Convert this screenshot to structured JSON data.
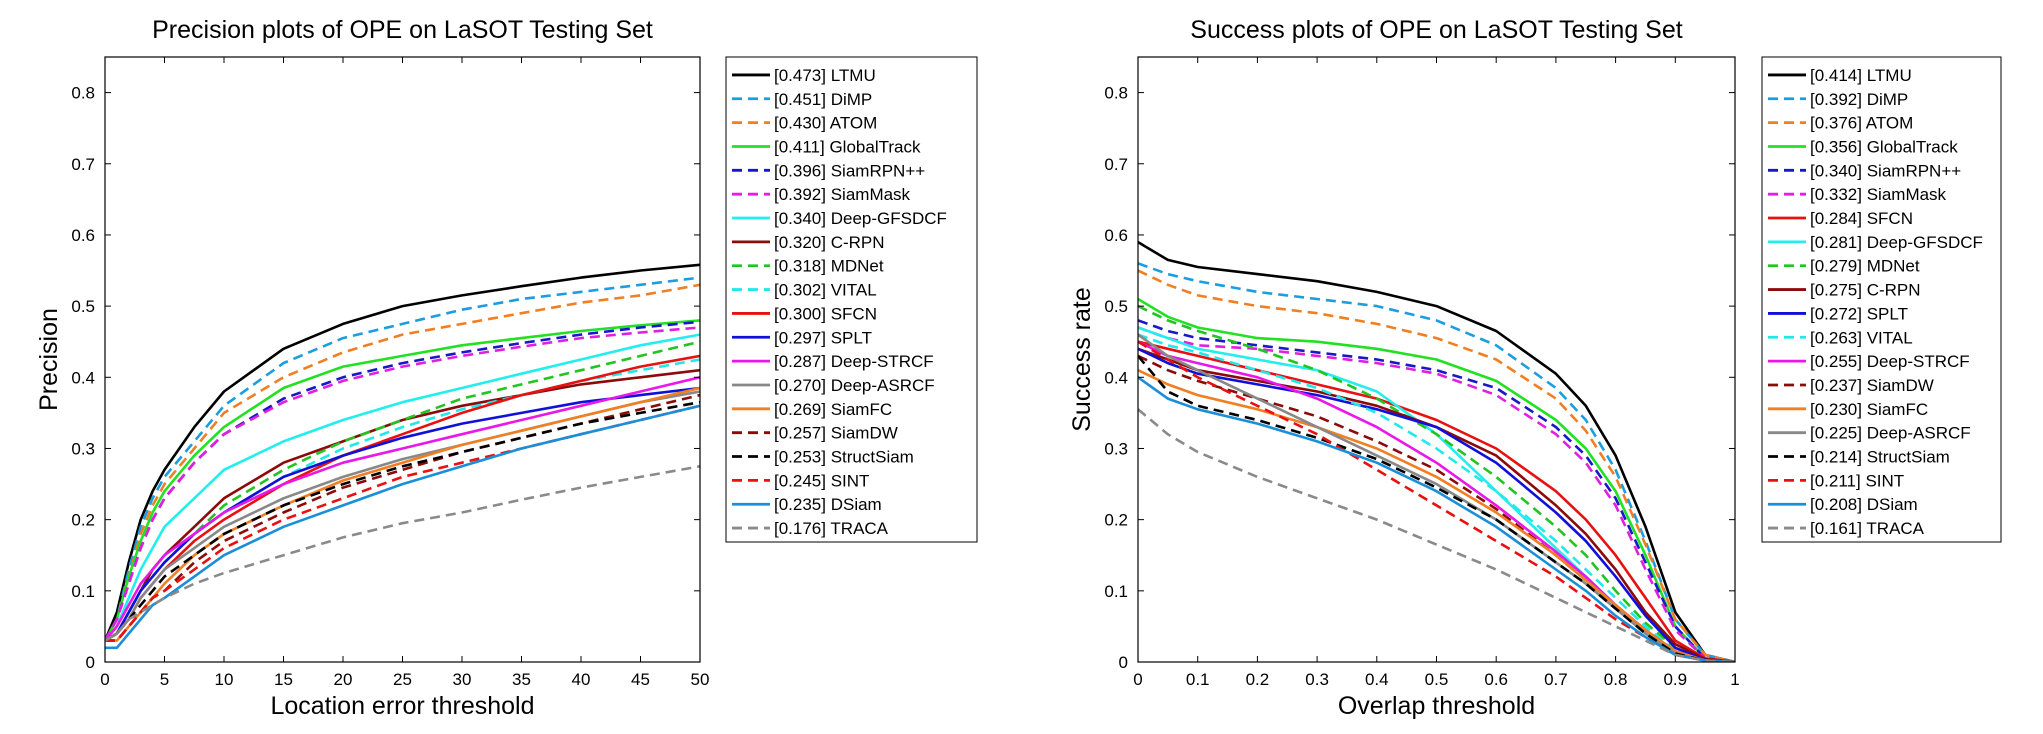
{
  "chart_data": [
    {
      "type": "line",
      "title": "Precision plots of OPE on LaSOT Testing Set",
      "xlabel": "Location error threshold",
      "ylabel": "Precision",
      "xlim": [
        0,
        50
      ],
      "ylim": [
        0,
        0.85
      ],
      "xticks": [
        0,
        5,
        10,
        15,
        20,
        25,
        30,
        35,
        40,
        45,
        50
      ],
      "yticks": [
        0,
        0.1,
        0.2,
        0.3,
        0.4,
        0.5,
        0.6,
        0.7,
        0.8
      ],
      "legend_position": "outside-right",
      "x": [
        0,
        1,
        2,
        3,
        4,
        5,
        7.5,
        10,
        15,
        20,
        25,
        30,
        35,
        40,
        45,
        50
      ],
      "series": [
        {
          "name": "[0.473] LTMU",
          "color": "#000000",
          "dash": "solid",
          "values": [
            0.03,
            0.07,
            0.14,
            0.2,
            0.24,
            0.27,
            0.33,
            0.38,
            0.44,
            0.475,
            0.5,
            0.515,
            0.528,
            0.54,
            0.55,
            0.558
          ]
        },
        {
          "name": "[0.451] DiMP",
          "color": "#1a9ee0",
          "dash": "dashed",
          "values": [
            0.03,
            0.06,
            0.13,
            0.19,
            0.23,
            0.26,
            0.31,
            0.36,
            0.42,
            0.455,
            0.475,
            0.495,
            0.51,
            0.52,
            0.53,
            0.54
          ]
        },
        {
          "name": "[0.430] ATOM",
          "color": "#f07f24",
          "dash": "dashed",
          "values": [
            0.03,
            0.06,
            0.12,
            0.18,
            0.22,
            0.25,
            0.3,
            0.35,
            0.4,
            0.435,
            0.46,
            0.475,
            0.49,
            0.505,
            0.515,
            0.53
          ]
        },
        {
          "name": "[0.411] GlobalTrack",
          "color": "#22e022",
          "dash": "solid",
          "values": [
            0.03,
            0.06,
            0.12,
            0.17,
            0.21,
            0.24,
            0.29,
            0.33,
            0.385,
            0.415,
            0.43,
            0.445,
            0.455,
            0.465,
            0.473,
            0.48
          ]
        },
        {
          "name": "[0.396] SiamRPN++",
          "color": "#1818c8",
          "dash": "dashed",
          "values": [
            0.03,
            0.06,
            0.11,
            0.16,
            0.2,
            0.23,
            0.28,
            0.32,
            0.37,
            0.4,
            0.42,
            0.435,
            0.448,
            0.46,
            0.47,
            0.478
          ]
        },
        {
          "name": "[0.392] SiamMask",
          "color": "#e020e0",
          "dash": "dashed",
          "values": [
            0.03,
            0.06,
            0.11,
            0.16,
            0.2,
            0.23,
            0.28,
            0.32,
            0.365,
            0.395,
            0.415,
            0.43,
            0.443,
            0.455,
            0.463,
            0.47
          ]
        },
        {
          "name": "[0.340] Deep-GFSDCF",
          "color": "#22eeee",
          "dash": "solid",
          "values": [
            0.03,
            0.05,
            0.09,
            0.13,
            0.16,
            0.19,
            0.23,
            0.27,
            0.31,
            0.34,
            0.365,
            0.385,
            0.405,
            0.425,
            0.445,
            0.46
          ]
        },
        {
          "name": "[0.320] C-RPN",
          "color": "#8b0a0a",
          "dash": "solid",
          "values": [
            0.03,
            0.04,
            0.07,
            0.1,
            0.13,
            0.15,
            0.19,
            0.23,
            0.28,
            0.31,
            0.34,
            0.36,
            0.375,
            0.39,
            0.4,
            0.41
          ]
        },
        {
          "name": "[0.318] MDNet",
          "color": "#22c422",
          "dash": "dashed",
          "values": [
            0.03,
            0.04,
            0.07,
            0.1,
            0.12,
            0.14,
            0.18,
            0.22,
            0.27,
            0.31,
            0.34,
            0.37,
            0.39,
            0.41,
            0.43,
            0.45
          ]
        },
        {
          "name": "[0.302] VITAL",
          "color": "#22e8e8",
          "dash": "dashed",
          "values": [
            0.03,
            0.04,
            0.07,
            0.1,
            0.12,
            0.14,
            0.18,
            0.21,
            0.26,
            0.3,
            0.33,
            0.355,
            0.375,
            0.395,
            0.41,
            0.425
          ]
        },
        {
          "name": "[0.300] SFCN",
          "color": "#e81010",
          "dash": "solid",
          "values": [
            0.03,
            0.04,
            0.06,
            0.09,
            0.11,
            0.13,
            0.17,
            0.2,
            0.25,
            0.29,
            0.32,
            0.35,
            0.375,
            0.395,
            0.415,
            0.43
          ]
        },
        {
          "name": "[0.297] SPLT",
          "color": "#1010d8",
          "dash": "solid",
          "values": [
            0.03,
            0.04,
            0.07,
            0.1,
            0.12,
            0.14,
            0.18,
            0.21,
            0.26,
            0.29,
            0.315,
            0.335,
            0.35,
            0.365,
            0.375,
            0.385
          ]
        },
        {
          "name": "[0.287] Deep-STRCF",
          "color": "#e818e8",
          "dash": "solid",
          "values": [
            0.03,
            0.05,
            0.08,
            0.11,
            0.13,
            0.15,
            0.18,
            0.21,
            0.25,
            0.28,
            0.3,
            0.32,
            0.34,
            0.36,
            0.38,
            0.4
          ]
        },
        {
          "name": "[0.270] Deep-ASRCF",
          "color": "#888888",
          "dash": "solid",
          "values": [
            0.03,
            0.04,
            0.06,
            0.09,
            0.11,
            0.13,
            0.16,
            0.19,
            0.23,
            0.26,
            0.285,
            0.305,
            0.325,
            0.345,
            0.365,
            0.38
          ]
        },
        {
          "name": "[0.269] SiamFC",
          "color": "#f07f24",
          "dash": "solid",
          "values": [
            0.03,
            0.03,
            0.05,
            0.07,
            0.09,
            0.11,
            0.15,
            0.18,
            0.22,
            0.255,
            0.28,
            0.305,
            0.325,
            0.345,
            0.365,
            0.385
          ]
        },
        {
          "name": "[0.257] SiamDW",
          "color": "#8b0a0a",
          "dash": "dashed",
          "values": [
            0.03,
            0.03,
            0.05,
            0.07,
            0.09,
            0.1,
            0.14,
            0.17,
            0.21,
            0.245,
            0.27,
            0.295,
            0.315,
            0.335,
            0.355,
            0.375
          ]
        },
        {
          "name": "[0.253] StructSiam",
          "color": "#000000",
          "dash": "dashed",
          "values": [
            0.03,
            0.04,
            0.06,
            0.08,
            0.1,
            0.12,
            0.15,
            0.18,
            0.22,
            0.25,
            0.275,
            0.295,
            0.315,
            0.335,
            0.35,
            0.365
          ]
        },
        {
          "name": "[0.245] SINT",
          "color": "#e81010",
          "dash": "dashed",
          "values": [
            0.03,
            0.03,
            0.05,
            0.07,
            0.09,
            0.1,
            0.13,
            0.16,
            0.2,
            0.23,
            0.26,
            0.28,
            0.3,
            0.32,
            0.34,
            0.36
          ]
        },
        {
          "name": "[0.235] DSiam",
          "color": "#1a8fd8",
          "dash": "solid",
          "values": [
            0.02,
            0.02,
            0.04,
            0.06,
            0.08,
            0.09,
            0.12,
            0.15,
            0.19,
            0.22,
            0.25,
            0.275,
            0.3,
            0.32,
            0.34,
            0.36
          ]
        },
        {
          "name": "[0.176] TRACA",
          "color": "#8a8a8a",
          "dash": "dashed",
          "values": [
            0.03,
            0.04,
            0.06,
            0.07,
            0.08,
            0.09,
            0.11,
            0.125,
            0.15,
            0.175,
            0.195,
            0.21,
            0.228,
            0.245,
            0.26,
            0.275
          ]
        }
      ]
    },
    {
      "type": "line",
      "title": "Success plots of OPE on LaSOT Testing Set",
      "xlabel": "Overlap threshold",
      "ylabel": "Success rate",
      "xlim": [
        0,
        1
      ],
      "ylim": [
        0,
        0.85
      ],
      "xticks": [
        0,
        0.1,
        0.2,
        0.3,
        0.4,
        0.5,
        0.6,
        0.7,
        0.8,
        0.9,
        1
      ],
      "yticks": [
        0,
        0.1,
        0.2,
        0.3,
        0.4,
        0.5,
        0.6,
        0.7,
        0.8
      ],
      "legend_position": "outside-right",
      "x": [
        0,
        0.05,
        0.1,
        0.2,
        0.3,
        0.4,
        0.5,
        0.6,
        0.7,
        0.75,
        0.8,
        0.85,
        0.9,
        0.95,
        1
      ],
      "series": [
        {
          "name": "[0.414] LTMU",
          "color": "#000000",
          "dash": "solid",
          "values": [
            0.59,
            0.565,
            0.555,
            0.545,
            0.535,
            0.52,
            0.5,
            0.465,
            0.405,
            0.36,
            0.29,
            0.19,
            0.07,
            0.01,
            0
          ]
        },
        {
          "name": "[0.392] DiMP",
          "color": "#1a9ee0",
          "dash": "dashed",
          "values": [
            0.56,
            0.545,
            0.535,
            0.52,
            0.51,
            0.5,
            0.48,
            0.445,
            0.385,
            0.34,
            0.27,
            0.17,
            0.06,
            0.01,
            0
          ]
        },
        {
          "name": "[0.376] ATOM",
          "color": "#f07f24",
          "dash": "dashed",
          "values": [
            0.55,
            0.53,
            0.515,
            0.5,
            0.49,
            0.475,
            0.455,
            0.425,
            0.37,
            0.325,
            0.26,
            0.165,
            0.06,
            0.01,
            0
          ]
        },
        {
          "name": "[0.356] GlobalTrack",
          "color": "#22e022",
          "dash": "solid",
          "values": [
            0.51,
            0.485,
            0.47,
            0.455,
            0.45,
            0.44,
            0.425,
            0.395,
            0.34,
            0.3,
            0.24,
            0.15,
            0.05,
            0.005,
            0
          ]
        },
        {
          "name": "[0.340] SiamRPN++",
          "color": "#1818c8",
          "dash": "dashed",
          "values": [
            0.48,
            0.465,
            0.455,
            0.445,
            0.435,
            0.425,
            0.41,
            0.385,
            0.33,
            0.29,
            0.23,
            0.14,
            0.05,
            0.005,
            0
          ]
        },
        {
          "name": "[0.332] SiamMask",
          "color": "#e020e0",
          "dash": "dashed",
          "values": [
            0.47,
            0.455,
            0.445,
            0.44,
            0.43,
            0.42,
            0.405,
            0.375,
            0.32,
            0.28,
            0.22,
            0.13,
            0.045,
            0.005,
            0
          ]
        },
        {
          "name": "[0.284] SFCN",
          "color": "#e81010",
          "dash": "solid",
          "values": [
            0.45,
            0.44,
            0.43,
            0.41,
            0.39,
            0.37,
            0.34,
            0.3,
            0.24,
            0.2,
            0.15,
            0.09,
            0.03,
            0.005,
            0
          ]
        },
        {
          "name": "[0.281] Deep-GFSDCF",
          "color": "#22eeee",
          "dash": "solid",
          "values": [
            0.47,
            0.455,
            0.44,
            0.425,
            0.41,
            0.38,
            0.32,
            0.24,
            0.16,
            0.12,
            0.08,
            0.045,
            0.015,
            0.002,
            0
          ]
        },
        {
          "name": "[0.279] MDNet",
          "color": "#22c422",
          "dash": "dashed",
          "values": [
            0.5,
            0.48,
            0.465,
            0.44,
            0.41,
            0.37,
            0.32,
            0.26,
            0.19,
            0.15,
            0.1,
            0.055,
            0.02,
            0.003,
            0
          ]
        },
        {
          "name": "[0.275] C-RPN",
          "color": "#8b0a0a",
          "dash": "solid",
          "values": [
            0.44,
            0.425,
            0.41,
            0.395,
            0.38,
            0.36,
            0.33,
            0.29,
            0.22,
            0.18,
            0.13,
            0.07,
            0.025,
            0.004,
            0
          ]
        },
        {
          "name": "[0.272] SPLT",
          "color": "#1010d8",
          "dash": "solid",
          "values": [
            0.44,
            0.42,
            0.405,
            0.39,
            0.375,
            0.355,
            0.33,
            0.28,
            0.21,
            0.17,
            0.12,
            0.065,
            0.02,
            0.003,
            0
          ]
        },
        {
          "name": "[0.263] VITAL",
          "color": "#22e8e8",
          "dash": "dashed",
          "values": [
            0.46,
            0.445,
            0.435,
            0.41,
            0.385,
            0.35,
            0.3,
            0.24,
            0.17,
            0.13,
            0.09,
            0.05,
            0.015,
            0.002,
            0
          ]
        },
        {
          "name": "[0.255] Deep-STRCF",
          "color": "#e818e8",
          "dash": "solid",
          "values": [
            0.45,
            0.43,
            0.42,
            0.4,
            0.37,
            0.33,
            0.28,
            0.22,
            0.155,
            0.12,
            0.08,
            0.045,
            0.015,
            0.002,
            0
          ]
        },
        {
          "name": "[0.237] SiamDW",
          "color": "#8b0a0a",
          "dash": "dashed",
          "values": [
            0.43,
            0.41,
            0.395,
            0.37,
            0.345,
            0.31,
            0.27,
            0.215,
            0.15,
            0.115,
            0.08,
            0.045,
            0.015,
            0.002,
            0
          ]
        },
        {
          "name": "[0.230] SiamFC",
          "color": "#f07f24",
          "dash": "solid",
          "values": [
            0.41,
            0.39,
            0.375,
            0.355,
            0.33,
            0.3,
            0.26,
            0.21,
            0.15,
            0.115,
            0.08,
            0.045,
            0.015,
            0.002,
            0
          ]
        },
        {
          "name": "[0.225] Deep-ASRCF",
          "color": "#888888",
          "dash": "solid",
          "values": [
            0.46,
            0.43,
            0.41,
            0.37,
            0.33,
            0.29,
            0.25,
            0.2,
            0.14,
            0.11,
            0.075,
            0.04,
            0.012,
            0.002,
            0
          ]
        },
        {
          "name": "[0.214] StructSiam",
          "color": "#000000",
          "dash": "dashed",
          "values": [
            0.43,
            0.38,
            0.36,
            0.34,
            0.315,
            0.285,
            0.245,
            0.2,
            0.14,
            0.11,
            0.075,
            0.04,
            0.012,
            0.002,
            0
          ]
        },
        {
          "name": "[0.211] SINT",
          "color": "#e81010",
          "dash": "dashed",
          "values": [
            0.45,
            0.425,
            0.4,
            0.36,
            0.32,
            0.27,
            0.22,
            0.17,
            0.12,
            0.09,
            0.06,
            0.035,
            0.01,
            0.002,
            0
          ]
        },
        {
          "name": "[0.208] DSiam",
          "color": "#1a8fd8",
          "dash": "solid",
          "values": [
            0.4,
            0.37,
            0.355,
            0.335,
            0.31,
            0.28,
            0.24,
            0.19,
            0.13,
            0.1,
            0.065,
            0.035,
            0.01,
            0.002,
            0
          ]
        },
        {
          "name": "[0.161] TRACA",
          "color": "#8a8a8a",
          "dash": "dashed",
          "values": [
            0.355,
            0.32,
            0.295,
            0.26,
            0.23,
            0.2,
            0.165,
            0.13,
            0.09,
            0.07,
            0.05,
            0.03,
            0.01,
            0.002,
            0
          ]
        }
      ]
    }
  ]
}
